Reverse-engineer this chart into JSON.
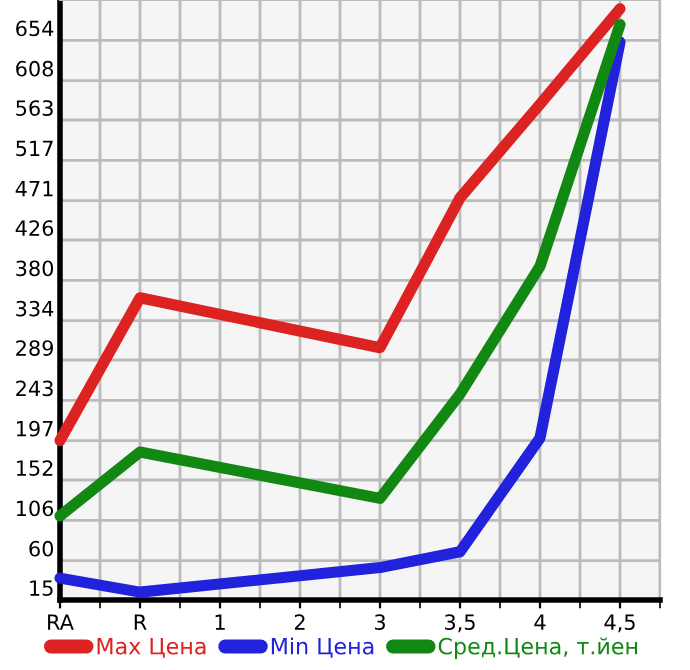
{
  "chart_data": {
    "type": "line",
    "categories": [
      "RA",
      "R",
      "1",
      "2",
      "3",
      "3,5",
      "4",
      "4,5"
    ],
    "series": [
      {
        "name": "Max Цена",
        "color": "#dd2222",
        "values": [
          197,
          360,
          null,
          null,
          303,
          474,
          581,
          690
        ]
      },
      {
        "name": "Min Цена",
        "color": "#2222dd",
        "values": [
          40,
          24,
          null,
          null,
          52,
          70,
          200,
          652
        ]
      },
      {
        "name": "Сред.Цена, т.йен",
        "color": "#118811",
        "values": [
          111,
          184,
          null,
          null,
          131,
          250,
          396,
          672
        ]
      }
    ],
    "ylim": [
      15,
      700
    ],
    "yticks": [
      15,
      60,
      106,
      152,
      197,
      243,
      289,
      334,
      380,
      426,
      471,
      517,
      563,
      608,
      654
    ],
    "grid": true,
    "legend": "bottom",
    "marker": "none",
    "line_style": "solid"
  }
}
